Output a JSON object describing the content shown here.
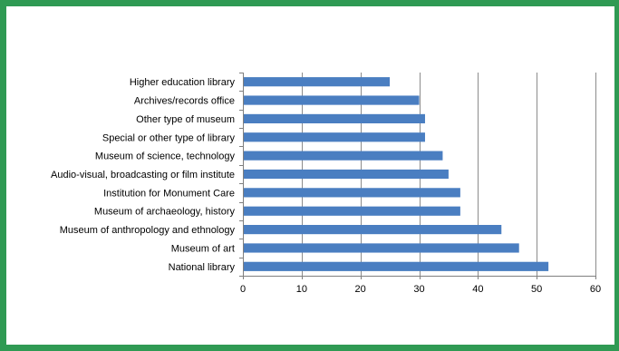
{
  "chart_data": {
    "type": "bar",
    "orientation": "horizontal",
    "categories": [
      "Higher education library",
      "Archives/records office",
      "Other type of museum",
      "Special or other type of library",
      "Museum of science, technology",
      "Audio-visual, broadcasting or film institute",
      "Institution for Monument Care",
      "Museum of archaeology, history",
      "Museum of anthropology and ethnology",
      "Museum of art",
      "National library"
    ],
    "values": [
      25,
      30,
      31,
      31,
      34,
      35,
      37,
      37,
      44,
      47,
      52
    ],
    "xlim": [
      0,
      60
    ],
    "xticks": [
      "0",
      "10",
      "20",
      "30",
      "40",
      "50",
      "60"
    ],
    "grid": true,
    "legend": "none",
    "bar_color": "#4a7ec1",
    "frame_color": "#2f9a53"
  }
}
